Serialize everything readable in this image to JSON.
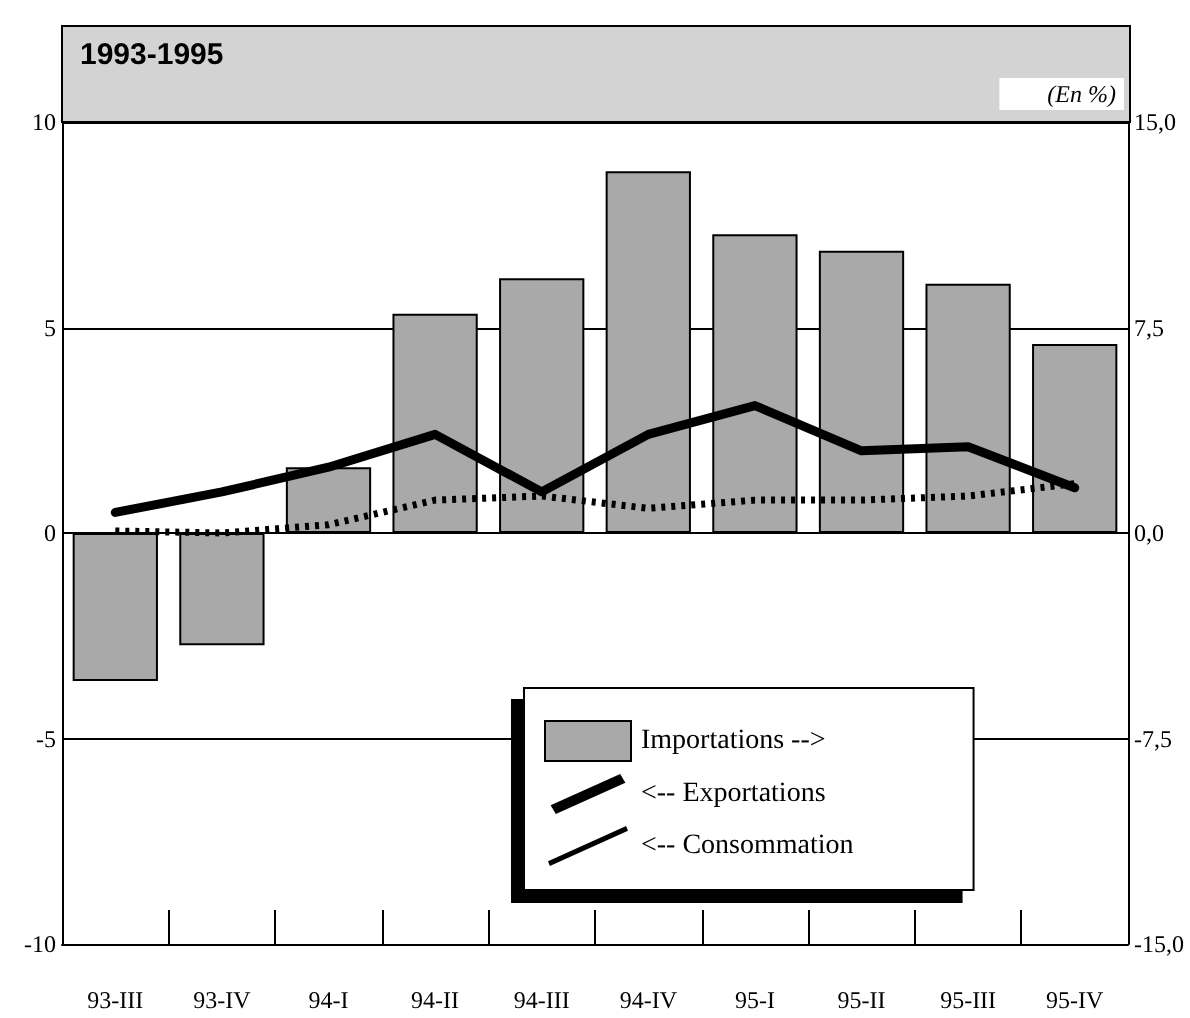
{
  "chart_data": {
    "type": "bar",
    "title": "1993-1995",
    "annotations": [
      "(En %)"
    ],
    "categories": [
      "93-III",
      "93-IV",
      "94-I",
      "94-II",
      "94-III",
      "94-IV",
      "95-I",
      "95-II",
      "95-III",
      "95-IV"
    ],
    "series": [
      {
        "name": "Importations -->",
        "axis": "y2",
        "color": "#a9a9a9",
        "values": [
          -5.4,
          -4.1,
          2.4,
          8.0,
          9.3,
          13.2,
          10.9,
          10.3,
          9.1,
          6.9
        ]
      },
      {
        "name": "<-- Exportations",
        "type": "line",
        "color": "#000000",
        "line_style": "solid",
        "values": [
          0.5,
          1.0,
          1.6,
          2.4,
          1.0,
          2.4,
          3.1,
          2.0,
          2.1,
          1.1
        ]
      },
      {
        "name": "<-- Consommation",
        "type": "line",
        "color": "#000000",
        "line_style": "dotted",
        "values": [
          0.05,
          0.0,
          0.2,
          0.8,
          0.9,
          0.6,
          0.8,
          0.8,
          0.9,
          1.2
        ]
      }
    ],
    "ylim": [
      -10,
      10
    ],
    "yticks": [
      -10,
      -5,
      0,
      5,
      10
    ],
    "y2lim": [
      -15,
      15
    ],
    "y2ticks": [
      {
        "value": -15,
        "label": "-15,0"
      },
      {
        "value": -7.5,
        "label": "-7,5"
      },
      {
        "value": 0,
        "label": "0,0"
      },
      {
        "value": 7.5,
        "label": "7,5"
      },
      {
        "value": 15,
        "label": "15,0"
      }
    ],
    "grid": "y",
    "legend": "bottom",
    "marker": "none"
  }
}
